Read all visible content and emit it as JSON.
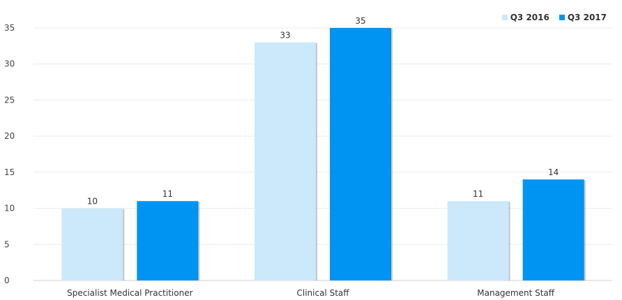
{
  "chart_data": {
    "type": "bar",
    "categories": [
      "Specialist Medical Practitioner",
      "Clinical Staff",
      "Management Staff"
    ],
    "series": [
      {
        "name": "Q3 2016",
        "values": [
          10,
          33,
          11
        ],
        "color": "#cce8fb"
      },
      {
        "name": "Q3 2017",
        "values": [
          11,
          35,
          14
        ],
        "color": "#0094f2"
      }
    ],
    "ylim": [
      0,
      35
    ],
    "yticks": [
      0,
      5,
      10,
      15,
      20,
      25,
      30,
      35
    ],
    "grid": true,
    "legend_position": "top-right"
  }
}
